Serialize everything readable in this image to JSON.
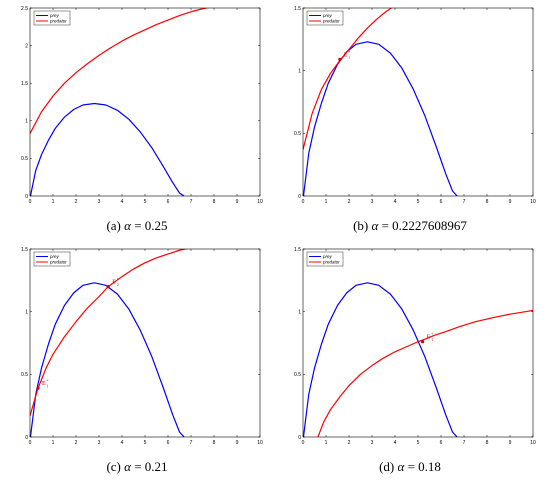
{
  "figure": {
    "colors": {
      "prey": "#0000ff",
      "predator": "#ff0000",
      "axis": "#000000"
    }
  },
  "chart_data": [
    {
      "type": "line",
      "caption": {
        "label": "(a)",
        "symbol": "α",
        "eq": "= 0.25"
      },
      "xlim": [
        0,
        10
      ],
      "ylim": [
        0,
        2.5
      ],
      "xticks": [
        "0",
        "1",
        "2",
        "3",
        "4",
        "5",
        "6",
        "7",
        "8",
        "9",
        "10"
      ],
      "yticks": [
        "0",
        "0.5",
        "1",
        "1.5",
        "2",
        "2.5"
      ],
      "legend": [
        "prey",
        "predator"
      ],
      "series": [
        {
          "name": "prey",
          "color": "#0000ff",
          "x": [
            0.02,
            0.25,
            0.5,
            0.8,
            1.1,
            1.5,
            1.9,
            2.3,
            2.8,
            3.3,
            3.8,
            4.3,
            4.8,
            5.3,
            5.8,
            6.2,
            6.5,
            6.7
          ],
          "y": [
            0.0,
            0.34,
            0.55,
            0.74,
            0.9,
            1.05,
            1.15,
            1.21,
            1.23,
            1.21,
            1.14,
            1.02,
            0.85,
            0.64,
            0.39,
            0.18,
            0.04,
            0.0
          ]
        },
        {
          "name": "predator",
          "color": "#ff0000",
          "x": [
            0.0,
            0.5,
            1.0,
            1.5,
            2.0,
            2.5,
            3.0,
            3.5,
            4.0,
            4.5,
            5.0,
            5.5,
            6.0,
            6.5,
            7.0,
            7.5,
            8.0
          ],
          "y": [
            0.83,
            1.12,
            1.33,
            1.5,
            1.64,
            1.76,
            1.87,
            1.97,
            2.06,
            2.14,
            2.21,
            2.28,
            2.34,
            2.4,
            2.45,
            2.49,
            2.52
          ]
        }
      ],
      "annotations": []
    },
    {
      "type": "line",
      "caption": {
        "label": "(b)",
        "symbol": "α",
        "eq": "= 0.2227608967"
      },
      "xlim": [
        0,
        10
      ],
      "ylim": [
        0,
        1.5
      ],
      "xticks": [
        "0",
        "1",
        "2",
        "3",
        "4",
        "5",
        "6",
        "7",
        "8",
        "9",
        "10"
      ],
      "yticks": [
        "0",
        "0.5",
        "1",
        "1.5"
      ],
      "legend": [
        "prey",
        "predator"
      ],
      "series": [
        {
          "name": "prey",
          "color": "#0000ff",
          "x": [
            0.02,
            0.25,
            0.5,
            0.8,
            1.1,
            1.5,
            1.9,
            2.3,
            2.8,
            3.3,
            3.8,
            4.3,
            4.8,
            5.3,
            5.8,
            6.2,
            6.5,
            6.7
          ],
          "y": [
            0.0,
            0.34,
            0.55,
            0.74,
            0.9,
            1.05,
            1.15,
            1.21,
            1.23,
            1.21,
            1.14,
            1.02,
            0.85,
            0.64,
            0.39,
            0.18,
            0.04,
            0.0
          ]
        },
        {
          "name": "predator",
          "color": "#ff0000",
          "x": [
            0.0,
            0.4,
            0.8,
            1.2,
            1.6,
            2.0,
            2.4,
            2.8,
            3.2,
            3.6,
            4.0
          ],
          "y": [
            0.37,
            0.66,
            0.85,
            0.98,
            1.08,
            1.17,
            1.26,
            1.34,
            1.41,
            1.47,
            1.52
          ]
        }
      ],
      "annotations": [
        {
          "x": 1.6,
          "y": 1.09,
          "label": "E",
          "sub": "*",
          "sup": "1"
        }
      ]
    },
    {
      "type": "line",
      "caption": {
        "label": "(c)",
        "symbol": "α",
        "eq": "= 0.21"
      },
      "xlim": [
        0,
        10
      ],
      "ylim": [
        0,
        1.5
      ],
      "xticks": [
        "0",
        "1",
        "2",
        "3",
        "4",
        "5",
        "6",
        "7",
        "8",
        "9",
        "10"
      ],
      "yticks": [
        "0",
        "0.5",
        "1",
        "1.5"
      ],
      "legend": [
        "prey",
        "predator"
      ],
      "series": [
        {
          "name": "prey",
          "color": "#0000ff",
          "x": [
            0.02,
            0.25,
            0.5,
            0.8,
            1.1,
            1.5,
            1.9,
            2.3,
            2.8,
            3.3,
            3.8,
            4.3,
            4.8,
            5.3,
            5.8,
            6.2,
            6.5,
            6.7
          ],
          "y": [
            0.0,
            0.34,
            0.55,
            0.74,
            0.9,
            1.05,
            1.15,
            1.21,
            1.23,
            1.21,
            1.14,
            1.02,
            0.85,
            0.64,
            0.39,
            0.18,
            0.04,
            0.0
          ]
        },
        {
          "name": "predator",
          "color": "#ff0000",
          "x": [
            0.0,
            0.35,
            0.7,
            1.0,
            1.5,
            2.0,
            2.5,
            3.0,
            3.4,
            4.0,
            4.5,
            5.0,
            5.5,
            6.0,
            6.5,
            7.0,
            7.5,
            8.0
          ],
          "y": [
            0.17,
            0.39,
            0.55,
            0.66,
            0.8,
            0.92,
            1.03,
            1.12,
            1.2,
            1.28,
            1.34,
            1.39,
            1.43,
            1.46,
            1.49,
            1.51,
            1.53,
            1.55
          ]
        }
      ],
      "annotations": [
        {
          "x": 0.35,
          "y": 0.39,
          "label": "E",
          "sub": "*",
          "sup": "1"
        },
        {
          "x": 3.4,
          "y": 1.2,
          "label": "E",
          "sub": "*",
          "sup": "2"
        }
      ]
    },
    {
      "type": "line",
      "caption": {
        "label": "(d)",
        "symbol": "α",
        "eq": "= 0.18"
      },
      "xlim": [
        0,
        10
      ],
      "ylim": [
        0,
        1.5
      ],
      "xticks": [
        "0",
        "1",
        "2",
        "3",
        "4",
        "5",
        "6",
        "7",
        "8",
        "9",
        "10"
      ],
      "yticks": [
        "0",
        "0.5",
        "1",
        "1.5"
      ],
      "legend": [
        "prey",
        "predator"
      ],
      "series": [
        {
          "name": "prey",
          "color": "#0000ff",
          "x": [
            0.02,
            0.25,
            0.5,
            0.8,
            1.1,
            1.5,
            1.9,
            2.3,
            2.8,
            3.3,
            3.8,
            4.3,
            4.8,
            5.3,
            5.8,
            6.2,
            6.5,
            6.7
          ],
          "y": [
            0.0,
            0.34,
            0.55,
            0.74,
            0.9,
            1.05,
            1.15,
            1.21,
            1.23,
            1.21,
            1.14,
            1.02,
            0.85,
            0.64,
            0.39,
            0.18,
            0.04,
            0.0
          ]
        },
        {
          "name": "predator",
          "color": "#ff0000",
          "x": [
            0.65,
            0.9,
            1.2,
            1.6,
            2.0,
            2.5,
            3.0,
            3.5,
            4.0,
            4.5,
            5.0,
            5.3,
            5.7,
            6.2,
            6.8,
            7.5,
            8.2,
            9.0,
            10.0
          ],
          "y": [
            0.0,
            0.12,
            0.22,
            0.32,
            0.41,
            0.5,
            0.57,
            0.63,
            0.68,
            0.72,
            0.76,
            0.78,
            0.81,
            0.84,
            0.88,
            0.92,
            0.95,
            0.98,
            1.01
          ]
        }
      ],
      "annotations": [
        {
          "x": 5.2,
          "y": 0.76,
          "label": "E",
          "sub": "*",
          "sup": "1"
        }
      ]
    }
  ]
}
